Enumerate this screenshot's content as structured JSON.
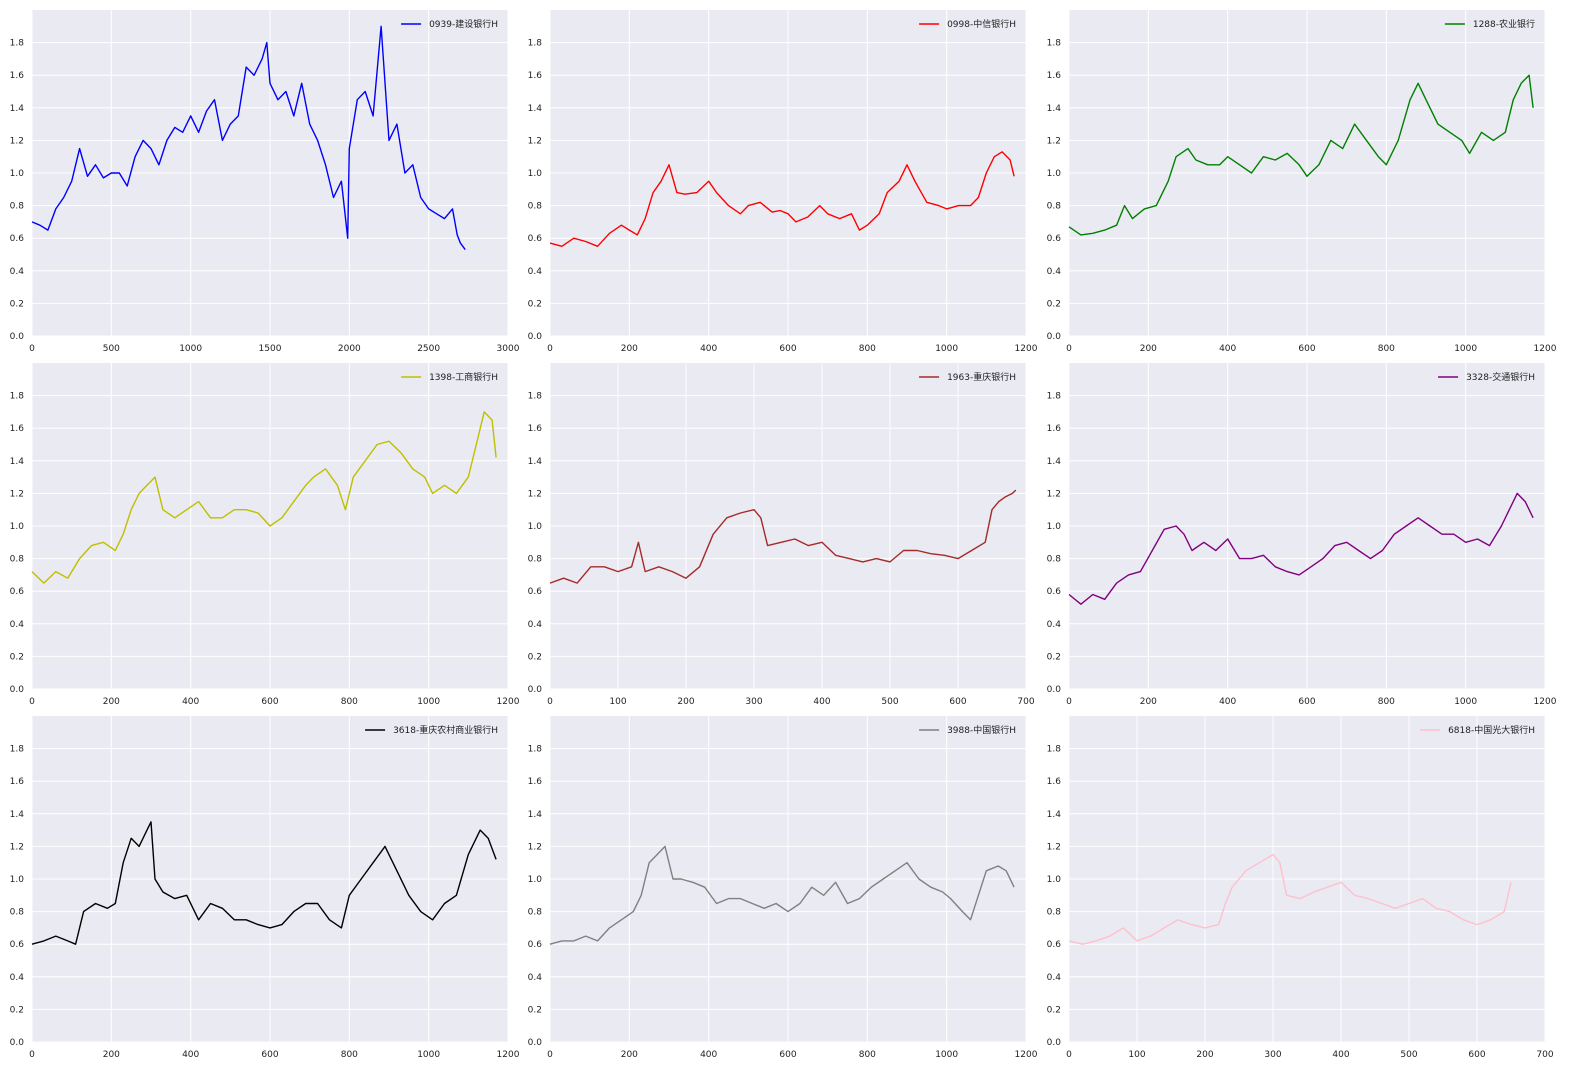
{
  "figure": {
    "background": "#ffffff",
    "axes_background": "#eaeaf2",
    "grid_color": "#ffffff"
  },
  "chart_data": [
    {
      "type": "line",
      "legend": "0939-建设银行H",
      "legend_position": "top-right",
      "color": "#0000ff",
      "xlim": [
        0,
        3000
      ],
      "ylim": [
        0,
        2.0
      ],
      "xticks": [
        0,
        500,
        1000,
        1500,
        2000,
        2500,
        3000
      ],
      "yticks": [
        0.0,
        0.2,
        0.4,
        0.6,
        0.8,
        1.0,
        1.2,
        1.4,
        1.6,
        1.8
      ],
      "grid": true,
      "x": [
        0,
        50,
        100,
        150,
        200,
        250,
        300,
        350,
        400,
        450,
        500,
        550,
        600,
        650,
        700,
        750,
        800,
        850,
        900,
        950,
        1000,
        1050,
        1100,
        1150,
        1200,
        1250,
        1300,
        1350,
        1400,
        1450,
        1480,
        1500,
        1550,
        1600,
        1650,
        1700,
        1750,
        1800,
        1850,
        1900,
        1950,
        1990,
        2000,
        2050,
        2100,
        2150,
        2200,
        2250,
        2300,
        2350,
        2400,
        2450,
        2500,
        2550,
        2600,
        2650,
        2680,
        2700,
        2730
      ],
      "y": [
        0.7,
        0.68,
        0.65,
        0.78,
        0.85,
        0.95,
        1.15,
        0.98,
        1.05,
        0.97,
        1.0,
        1.0,
        0.92,
        1.1,
        1.2,
        1.15,
        1.05,
        1.2,
        1.28,
        1.25,
        1.35,
        1.25,
        1.38,
        1.45,
        1.2,
        1.3,
        1.35,
        1.65,
        1.6,
        1.7,
        1.8,
        1.55,
        1.45,
        1.5,
        1.35,
        1.55,
        1.3,
        1.2,
        1.05,
        0.85,
        0.95,
        0.6,
        1.15,
        1.45,
        1.5,
        1.35,
        1.9,
        1.2,
        1.3,
        1.0,
        1.05,
        0.85,
        0.78,
        0.75,
        0.72,
        0.78,
        0.62,
        0.57,
        0.53
      ]
    },
    {
      "type": "line",
      "legend": "0998-中信银行H",
      "legend_position": "top-right",
      "color": "#ff0000",
      "xlim": [
        0,
        1200
      ],
      "ylim": [
        0,
        2.0
      ],
      "xticks": [
        0,
        200,
        400,
        600,
        800,
        1000,
        1200
      ],
      "yticks": [
        0.0,
        0.2,
        0.4,
        0.6,
        0.8,
        1.0,
        1.2,
        1.4,
        1.6,
        1.8
      ],
      "grid": true,
      "x": [
        0,
        30,
        60,
        90,
        120,
        150,
        180,
        200,
        220,
        240,
        260,
        280,
        300,
        320,
        340,
        370,
        400,
        420,
        450,
        480,
        500,
        530,
        560,
        580,
        600,
        620,
        650,
        680,
        700,
        730,
        760,
        780,
        800,
        830,
        850,
        880,
        900,
        920,
        950,
        980,
        1000,
        1030,
        1060,
        1080,
        1100,
        1120,
        1140,
        1160,
        1170
      ],
      "y": [
        0.57,
        0.55,
        0.6,
        0.58,
        0.55,
        0.63,
        0.68,
        0.65,
        0.62,
        0.72,
        0.88,
        0.95,
        1.05,
        0.88,
        0.87,
        0.88,
        0.95,
        0.88,
        0.8,
        0.75,
        0.8,
        0.82,
        0.76,
        0.77,
        0.75,
        0.7,
        0.73,
        0.8,
        0.75,
        0.72,
        0.75,
        0.65,
        0.68,
        0.75,
        0.88,
        0.95,
        1.05,
        0.95,
        0.82,
        0.8,
        0.78,
        0.8,
        0.8,
        0.85,
        1.0,
        1.1,
        1.13,
        1.08,
        0.98
      ]
    },
    {
      "type": "line",
      "legend": "1288-农业银行",
      "legend_position": "top-right",
      "color": "#008000",
      "xlim": [
        0,
        1200
      ],
      "ylim": [
        0,
        2.0
      ],
      "xticks": [
        0,
        200,
        400,
        600,
        800,
        1000,
        1200
      ],
      "yticks": [
        0.0,
        0.2,
        0.4,
        0.6,
        0.8,
        1.0,
        1.2,
        1.4,
        1.6,
        1.8
      ],
      "grid": true,
      "x": [
        0,
        30,
        60,
        90,
        120,
        140,
        160,
        190,
        220,
        250,
        270,
        300,
        320,
        350,
        380,
        400,
        430,
        460,
        490,
        520,
        550,
        580,
        600,
        630,
        660,
        690,
        720,
        750,
        780,
        800,
        830,
        860,
        880,
        900,
        930,
        960,
        990,
        1010,
        1040,
        1070,
        1100,
        1120,
        1140,
        1160,
        1170
      ],
      "y": [
        0.67,
        0.62,
        0.63,
        0.65,
        0.68,
        0.8,
        0.72,
        0.78,
        0.8,
        0.95,
        1.1,
        1.15,
        1.08,
        1.05,
        1.05,
        1.1,
        1.05,
        1.0,
        1.1,
        1.08,
        1.12,
        1.05,
        0.98,
        1.05,
        1.2,
        1.15,
        1.3,
        1.2,
        1.1,
        1.05,
        1.2,
        1.45,
        1.55,
        1.45,
        1.3,
        1.25,
        1.2,
        1.12,
        1.25,
        1.2,
        1.25,
        1.45,
        1.55,
        1.6,
        1.4
      ]
    },
    {
      "type": "line",
      "legend": "1398-工商银行H",
      "legend_position": "top-right",
      "color": "#bfbf00",
      "xlim": [
        0,
        1200
      ],
      "ylim": [
        0,
        2.0
      ],
      "xticks": [
        0,
        200,
        400,
        600,
        800,
        1000,
        1200
      ],
      "yticks": [
        0.0,
        0.2,
        0.4,
        0.6,
        0.8,
        1.0,
        1.2,
        1.4,
        1.6,
        1.8
      ],
      "grid": true,
      "x": [
        0,
        30,
        60,
        90,
        120,
        150,
        180,
        210,
        230,
        250,
        270,
        290,
        310,
        330,
        360,
        390,
        420,
        450,
        480,
        510,
        540,
        570,
        600,
        630,
        660,
        690,
        710,
        740,
        770,
        790,
        810,
        840,
        870,
        900,
        930,
        960,
        990,
        1010,
        1040,
        1070,
        1100,
        1120,
        1140,
        1160,
        1170
      ],
      "y": [
        0.72,
        0.65,
        0.72,
        0.68,
        0.8,
        0.88,
        0.9,
        0.85,
        0.95,
        1.1,
        1.2,
        1.25,
        1.3,
        1.1,
        1.05,
        1.1,
        1.15,
        1.05,
        1.05,
        1.1,
        1.1,
        1.08,
        1.0,
        1.05,
        1.15,
        1.25,
        1.3,
        1.35,
        1.25,
        1.1,
        1.3,
        1.4,
        1.5,
        1.52,
        1.45,
        1.35,
        1.3,
        1.2,
        1.25,
        1.2,
        1.3,
        1.5,
        1.7,
        1.65,
        1.42
      ]
    },
    {
      "type": "line",
      "legend": "1963-重庆银行H",
      "legend_position": "top-right",
      "color": "#a52a2a",
      "xlim": [
        0,
        700
      ],
      "ylim": [
        0,
        2.0
      ],
      "xticks": [
        0,
        100,
        200,
        300,
        400,
        500,
        600,
        700
      ],
      "yticks": [
        0.0,
        0.2,
        0.4,
        0.6,
        0.8,
        1.0,
        1.2,
        1.4,
        1.6,
        1.8
      ],
      "grid": true,
      "x": [
        0,
        20,
        40,
        60,
        80,
        100,
        120,
        130,
        140,
        160,
        180,
        200,
        220,
        240,
        260,
        280,
        300,
        310,
        320,
        340,
        360,
        380,
        400,
        420,
        440,
        460,
        480,
        500,
        520,
        540,
        560,
        580,
        600,
        620,
        640,
        650,
        660,
        670,
        680,
        685
      ],
      "y": [
        0.65,
        0.68,
        0.65,
        0.75,
        0.75,
        0.72,
        0.75,
        0.9,
        0.72,
        0.75,
        0.72,
        0.68,
        0.75,
        0.95,
        1.05,
        1.08,
        1.1,
        1.05,
        0.88,
        0.9,
        0.92,
        0.88,
        0.9,
        0.82,
        0.8,
        0.78,
        0.8,
        0.78,
        0.85,
        0.85,
        0.83,
        0.82,
        0.8,
        0.85,
        0.9,
        1.1,
        1.15,
        1.18,
        1.2,
        1.22
      ]
    },
    {
      "type": "line",
      "legend": "3328-交通银行H",
      "legend_position": "top-right",
      "color": "#800080",
      "xlim": [
        0,
        1200
      ],
      "ylim": [
        0,
        2.0
      ],
      "xticks": [
        0,
        200,
        400,
        600,
        800,
        1000,
        1200
      ],
      "yticks": [
        0.0,
        0.2,
        0.4,
        0.6,
        0.8,
        1.0,
        1.2,
        1.4,
        1.6,
        1.8
      ],
      "grid": true,
      "x": [
        0,
        30,
        60,
        90,
        120,
        150,
        180,
        210,
        240,
        270,
        290,
        310,
        340,
        370,
        400,
        430,
        460,
        490,
        520,
        550,
        580,
        610,
        640,
        670,
        700,
        730,
        760,
        790,
        820,
        850,
        880,
        910,
        940,
        970,
        1000,
        1030,
        1060,
        1090,
        1110,
        1130,
        1150,
        1170
      ],
      "y": [
        0.58,
        0.52,
        0.58,
        0.55,
        0.65,
        0.7,
        0.72,
        0.85,
        0.98,
        1.0,
        0.95,
        0.85,
        0.9,
        0.85,
        0.92,
        0.8,
        0.8,
        0.82,
        0.75,
        0.72,
        0.7,
        0.75,
        0.8,
        0.88,
        0.9,
        0.85,
        0.8,
        0.85,
        0.95,
        1.0,
        1.05,
        1.0,
        0.95,
        0.95,
        0.9,
        0.92,
        0.88,
        1.0,
        1.1,
        1.2,
        1.15,
        1.05
      ]
    },
    {
      "type": "line",
      "legend": "3618-重庆农村商业银行H",
      "legend_position": "top-right",
      "color": "#000000",
      "xlim": [
        0,
        1200
      ],
      "ylim": [
        0,
        2.0
      ],
      "xticks": [
        0,
        200,
        400,
        600,
        800,
        1000,
        1200
      ],
      "yticks": [
        0.0,
        0.2,
        0.4,
        0.6,
        0.8,
        1.0,
        1.2,
        1.4,
        1.6,
        1.8
      ],
      "grid": true,
      "x": [
        0,
        30,
        60,
        90,
        110,
        130,
        160,
        190,
        210,
        230,
        250,
        270,
        290,
        300,
        310,
        330,
        360,
        390,
        420,
        450,
        480,
        510,
        540,
        570,
        600,
        630,
        660,
        690,
        720,
        750,
        780,
        800,
        830,
        860,
        890,
        920,
        950,
        980,
        1010,
        1040,
        1070,
        1100,
        1130,
        1150,
        1170
      ],
      "y": [
        0.6,
        0.62,
        0.65,
        0.62,
        0.6,
        0.8,
        0.85,
        0.82,
        0.85,
        1.1,
        1.25,
        1.2,
        1.3,
        1.35,
        1.0,
        0.92,
        0.88,
        0.9,
        0.75,
        0.85,
        0.82,
        0.75,
        0.75,
        0.72,
        0.7,
        0.72,
        0.8,
        0.85,
        0.85,
        0.75,
        0.7,
        0.9,
        1.0,
        1.1,
        1.2,
        1.05,
        0.9,
        0.8,
        0.75,
        0.85,
        0.9,
        1.15,
        1.3,
        1.25,
        1.12
      ]
    },
    {
      "type": "line",
      "legend": "3988-中国银行H",
      "legend_position": "top-right",
      "color": "#808080",
      "xlim": [
        0,
        1200
      ],
      "ylim": [
        0,
        2.0
      ],
      "xticks": [
        0,
        200,
        400,
        600,
        800,
        1000,
        1200
      ],
      "yticks": [
        0.0,
        0.2,
        0.4,
        0.6,
        0.8,
        1.0,
        1.2,
        1.4,
        1.6,
        1.8
      ],
      "grid": true,
      "x": [
        0,
        30,
        60,
        90,
        120,
        150,
        180,
        210,
        230,
        250,
        270,
        290,
        310,
        330,
        360,
        390,
        420,
        450,
        480,
        510,
        540,
        570,
        600,
        630,
        660,
        690,
        720,
        750,
        780,
        810,
        840,
        870,
        900,
        930,
        960,
        990,
        1010,
        1040,
        1060,
        1080,
        1100,
        1130,
        1150,
        1170
      ],
      "y": [
        0.6,
        0.62,
        0.62,
        0.65,
        0.62,
        0.7,
        0.75,
        0.8,
        0.9,
        1.1,
        1.15,
        1.2,
        1.0,
        1.0,
        0.98,
        0.95,
        0.85,
        0.88,
        0.88,
        0.85,
        0.82,
        0.85,
        0.8,
        0.85,
        0.95,
        0.9,
        0.98,
        0.85,
        0.88,
        0.95,
        1.0,
        1.05,
        1.1,
        1.0,
        0.95,
        0.92,
        0.88,
        0.8,
        0.75,
        0.9,
        1.05,
        1.08,
        1.05,
        0.95
      ]
    },
    {
      "type": "line",
      "legend": "6818-中国光大银行H",
      "legend_position": "top-right",
      "color": "#ffc0cb",
      "xlim": [
        0,
        700
      ],
      "ylim": [
        0,
        2.0
      ],
      "xticks": [
        0,
        100,
        200,
        300,
        400,
        500,
        600,
        700
      ],
      "yticks": [
        0.0,
        0.2,
        0.4,
        0.6,
        0.8,
        1.0,
        1.2,
        1.4,
        1.6,
        1.8
      ],
      "grid": true,
      "x": [
        0,
        20,
        40,
        60,
        80,
        100,
        120,
        140,
        160,
        180,
        200,
        220,
        230,
        240,
        260,
        280,
        300,
        310,
        320,
        340,
        360,
        380,
        400,
        420,
        440,
        460,
        480,
        500,
        520,
        540,
        560,
        580,
        600,
        620,
        640,
        650
      ],
      "y": [
        0.62,
        0.6,
        0.62,
        0.65,
        0.7,
        0.62,
        0.65,
        0.7,
        0.75,
        0.72,
        0.7,
        0.72,
        0.85,
        0.95,
        1.05,
        1.1,
        1.15,
        1.1,
        0.9,
        0.88,
        0.92,
        0.95,
        0.98,
        0.9,
        0.88,
        0.85,
        0.82,
        0.85,
        0.88,
        0.82,
        0.8,
        0.75,
        0.72,
        0.75,
        0.8,
        0.98
      ]
    }
  ]
}
